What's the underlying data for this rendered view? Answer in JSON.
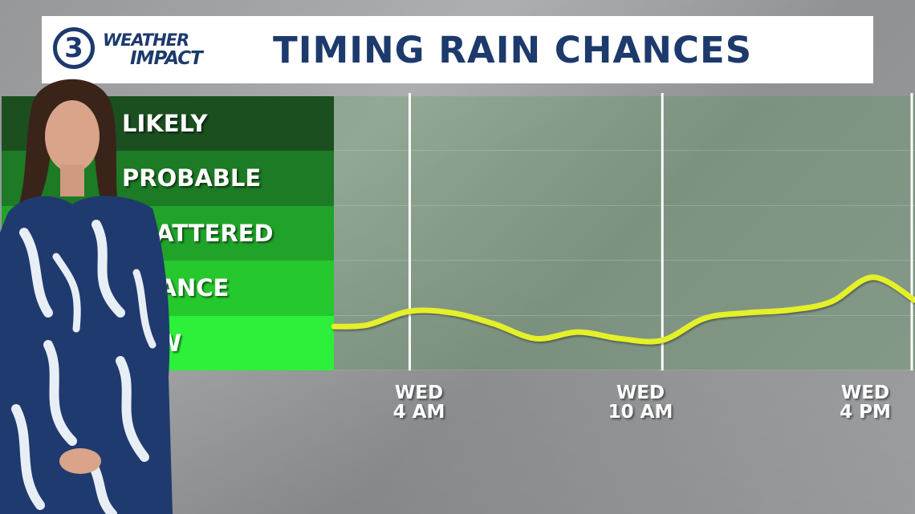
{
  "header": {
    "logo_number": "3",
    "logo_line1": "WEATHER",
    "logo_line2": "IMPACT",
    "title": "TIMING RAIN CHANCES"
  },
  "colors": {
    "title_blue": "#1d3a6d",
    "curve": "#e4f02a",
    "row_colors": [
      "#1b4f20",
      "#1d7a25",
      "#21a32a",
      "#25c92e",
      "#2cf03a"
    ]
  },
  "chart_data": {
    "type": "line",
    "title": "TIMING RAIN CHANCES",
    "categories": [
      "LIKELY",
      "PROBABLE",
      "SCATTERED",
      "CHANCE",
      "LOW"
    ],
    "x_ticks": [
      {
        "line1": "WED",
        "line2": "4 AM"
      },
      {
        "line1": "WED",
        "line2": "10 AM"
      },
      {
        "line1": "WED",
        "line2": "4 PM"
      }
    ],
    "xlim": [
      2.2,
      16
    ],
    "ylim": [
      0,
      5
    ],
    "series": [
      {
        "points": [
          [
            2.2,
            0.8
          ],
          [
            3.0,
            0.83
          ],
          [
            4.0,
            1.08
          ],
          [
            5.0,
            1.05
          ],
          [
            6.0,
            0.85
          ],
          [
            7.0,
            0.58
          ],
          [
            8.0,
            0.7
          ],
          [
            9.0,
            0.58
          ],
          [
            10.0,
            0.55
          ],
          [
            11.0,
            0.95
          ],
          [
            12.0,
            1.05
          ],
          [
            13.0,
            1.1
          ],
          [
            14.0,
            1.25
          ],
          [
            15.0,
            1.7
          ],
          [
            16.0,
            1.28
          ]
        ]
      }
    ],
    "grid": true
  }
}
